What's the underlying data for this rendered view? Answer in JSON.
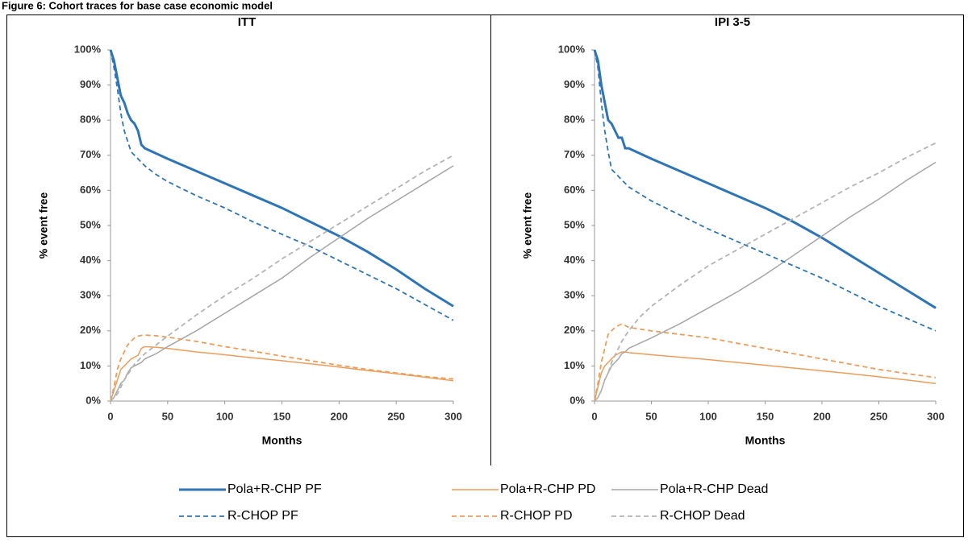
{
  "figure_title": "Figure 6: Cohort traces for base case economic model",
  "chart_data": [
    {
      "type": "line",
      "title": "ITT",
      "xlabel": "Months",
      "ylabel": "% event free",
      "x": [
        0,
        3,
        6,
        9,
        12,
        15,
        18,
        21,
        24,
        27,
        30,
        40,
        50,
        75,
        100,
        125,
        150,
        175,
        200,
        225,
        250,
        275,
        300
      ],
      "xlim": [
        0,
        300
      ],
      "xticks": [
        0,
        50,
        100,
        150,
        200,
        250,
        300
      ],
      "ylim": [
        0,
        100
      ],
      "yticks": [
        {
          "value": 0,
          "label": "0%"
        },
        {
          "value": 10,
          "label": "10%"
        },
        {
          "value": 20,
          "label": "20%"
        },
        {
          "value": 30,
          "label": "30%"
        },
        {
          "value": 40,
          "label": "40%"
        },
        {
          "value": 50,
          "label": "50%"
        },
        {
          "value": 60,
          "label": "60%"
        },
        {
          "value": 70,
          "label": "70%"
        },
        {
          "value": 80,
          "label": "80%"
        },
        {
          "value": 90,
          "label": "90%"
        },
        {
          "value": 100,
          "label": "100%"
        }
      ],
      "series": [
        {
          "name": "Pola+R-CHP PF",
          "color": "#2e75b6",
          "style": "solid",
          "width": 3,
          "values": [
            100,
            97,
            92,
            87,
            85,
            82,
            80,
            79,
            77,
            73,
            72,
            70.5,
            69,
            65.5,
            62,
            58.5,
            55,
            51,
            47,
            42.5,
            37.5,
            32,
            27
          ]
        },
        {
          "name": "Pola+R-CHP PD",
          "color": "#ed9d5a",
          "style": "solid",
          "width": 1.5,
          "values": [
            0,
            3,
            6,
            9,
            10,
            11,
            12,
            12.5,
            13,
            15,
            15.5,
            15.3,
            15,
            14,
            13.2,
            12.3,
            11.5,
            10.6,
            9.7,
            8.7,
            7.8,
            6.8,
            5.8
          ]
        },
        {
          "name": "Pola+R-CHP Dead",
          "color": "#a6a6a6",
          "style": "solid",
          "width": 1.5,
          "values": [
            0,
            1,
            3,
            5,
            6,
            8,
            9.5,
            10,
            10.5,
            11,
            12,
            13.5,
            15.5,
            20,
            25,
            30,
            35,
            41,
            46.5,
            52,
            57,
            62,
            67
          ]
        },
        {
          "name": "R-CHOP PF",
          "color": "#2e75b6",
          "style": "dashed",
          "width": 1.8,
          "values": [
            100,
            95,
            89,
            82,
            77,
            74,
            71,
            70,
            69,
            68,
            67,
            64.5,
            62.5,
            58.5,
            55,
            51,
            47.5,
            44,
            40,
            36,
            32,
            27.5,
            23
          ]
        },
        {
          "name": "R-CHOP PD",
          "color": "#ed9d5a",
          "style": "dashed",
          "width": 1.8,
          "values": [
            0,
            4,
            9,
            12,
            14,
            16,
            17,
            18,
            18.5,
            18.7,
            18.8,
            18.6,
            18.2,
            17,
            15.5,
            14.2,
            12.8,
            11.5,
            10.2,
            9,
            8,
            7,
            6.3
          ]
        },
        {
          "name": "R-CHOP Dead",
          "color": "#b4b4b4",
          "style": "dashed",
          "width": 1.8,
          "values": [
            0,
            1,
            2,
            4,
            6,
            7.5,
            9,
            10.5,
            11.5,
            12.5,
            13.5,
            16,
            18.5,
            24.5,
            30,
            35,
            40.5,
            45.5,
            50.5,
            55.5,
            60.5,
            65.5,
            70
          ]
        }
      ]
    },
    {
      "type": "line",
      "title": "IPI 3-5",
      "xlabel": "Months",
      "ylabel": "% event free",
      "x": [
        0,
        3,
        6,
        9,
        12,
        15,
        18,
        21,
        24,
        27,
        30,
        40,
        50,
        75,
        100,
        125,
        150,
        175,
        200,
        225,
        250,
        275,
        300
      ],
      "xlim": [
        0,
        300
      ],
      "xticks": [
        0,
        50,
        100,
        150,
        200,
        250,
        300
      ],
      "ylim": [
        0,
        100
      ],
      "yticks": [
        {
          "value": 0,
          "label": "0%"
        },
        {
          "value": 10,
          "label": "10%"
        },
        {
          "value": 20,
          "label": "20%"
        },
        {
          "value": 30,
          "label": "30%"
        },
        {
          "value": 40,
          "label": "40%"
        },
        {
          "value": 50,
          "label": "50%"
        },
        {
          "value": 60,
          "label": "60%"
        },
        {
          "value": 70,
          "label": "70%"
        },
        {
          "value": 80,
          "label": "80%"
        },
        {
          "value": 90,
          "label": "90%"
        },
        {
          "value": 100,
          "label": "100%"
        }
      ],
      "series": [
        {
          "name": "Pola+R-CHP PF",
          "color": "#2e75b6",
          "style": "solid",
          "width": 3,
          "values": [
            100,
            97,
            90,
            85,
            80,
            79,
            77,
            75,
            75,
            72,
            72,
            70.5,
            69,
            65.5,
            62,
            58.5,
            55,
            51,
            46.5,
            41.5,
            36.5,
            31.5,
            26.5
          ]
        },
        {
          "name": "Pola+R-CHP PD",
          "color": "#ed9d5a",
          "style": "solid",
          "width": 1.5,
          "values": [
            0,
            4,
            8,
            10,
            11,
            12,
            13,
            13.5,
            14,
            14,
            13.8,
            13.5,
            13.2,
            12.5,
            11.8,
            11,
            10.2,
            9.4,
            8.6,
            7.8,
            6.9,
            6,
            5
          ]
        },
        {
          "name": "Pola+R-CHP Dead",
          "color": "#a6a6a6",
          "style": "solid",
          "width": 1.5,
          "values": [
            0,
            1,
            3,
            6,
            8,
            10,
            11,
            12,
            13.5,
            14,
            15,
            16.5,
            18,
            22,
            26.5,
            31,
            36,
            41.5,
            47,
            52.5,
            57.5,
            63,
            68
          ]
        },
        {
          "name": "R-CHOP PF",
          "color": "#2e75b6",
          "style": "dashed",
          "width": 1.8,
          "values": [
            100,
            95,
            85,
            77,
            71,
            66,
            65,
            64,
            63,
            62,
            61,
            59,
            57,
            53,
            49,
            45.5,
            42,
            38.5,
            35,
            31,
            27,
            23.5,
            20
          ]
        },
        {
          "name": "R-CHOP PD",
          "color": "#ed9d5a",
          "style": "dashed",
          "width": 1.8,
          "values": [
            0,
            5,
            11,
            15,
            19,
            20,
            21,
            21.5,
            22,
            21.5,
            21,
            20.5,
            20,
            19,
            18,
            16.5,
            15,
            13.5,
            12,
            10.5,
            9,
            7.8,
            6.7
          ]
        },
        {
          "name": "R-CHOP Dead",
          "color": "#b4b4b4",
          "style": "dashed",
          "width": 1.8,
          "values": [
            0,
            1,
            3,
            6,
            8,
            11,
            13,
            15,
            17,
            18.5,
            20,
            24,
            27,
            33,
            38.5,
            43,
            47.5,
            52,
            56.5,
            61,
            65,
            69.5,
            73.5
          ]
        }
      ]
    }
  ]
}
